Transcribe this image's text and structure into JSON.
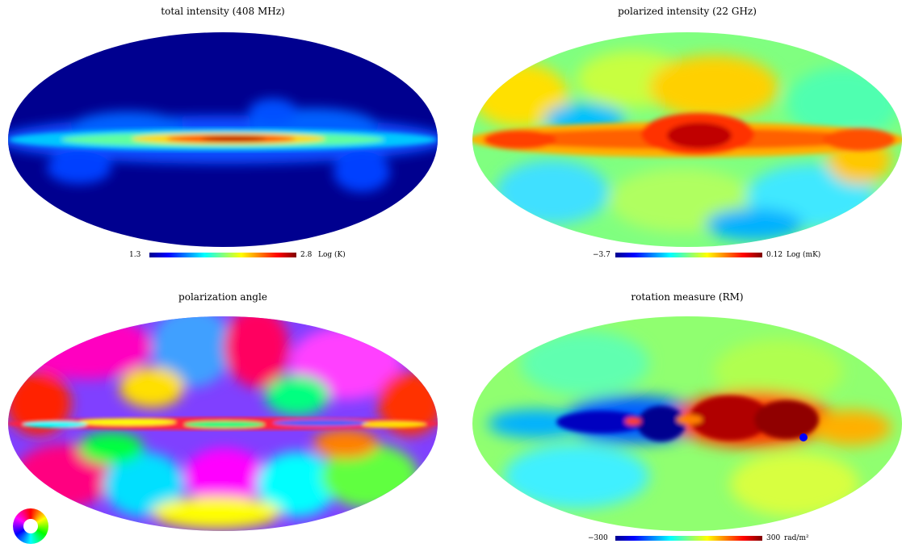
{
  "panels": {
    "top_left": {
      "title": "total intensity (408 MHz)",
      "colorbar": {
        "min": "1.3",
        "max": "2.8",
        "unit": "Log (K)"
      }
    },
    "top_right": {
      "title": "polarized intensity (22 GHz)",
      "colorbar": {
        "min": "−3.7",
        "max": "0.12",
        "unit": "Log (mK)"
      }
    },
    "bottom_left": {
      "title": "polarization angle",
      "legend": "color-wheel-icon"
    },
    "bottom_right": {
      "title": "rotation measure (RM)",
      "colorbar": {
        "min": "−300",
        "max": "300",
        "unit": "rad/m²"
      }
    }
  },
  "colors": {
    "jet": [
      "#00008f",
      "#0000ff",
      "#0080ff",
      "#00ffff",
      "#80ff80",
      "#ffff00",
      "#ff8000",
      "#ff0000",
      "#800000"
    ],
    "hue_wheel": [
      "#ff0000",
      "#ffff00",
      "#00ff00",
      "#00ffff",
      "#0000ff",
      "#ff00ff",
      "#ff0000"
    ],
    "background_low": "#00008f"
  }
}
